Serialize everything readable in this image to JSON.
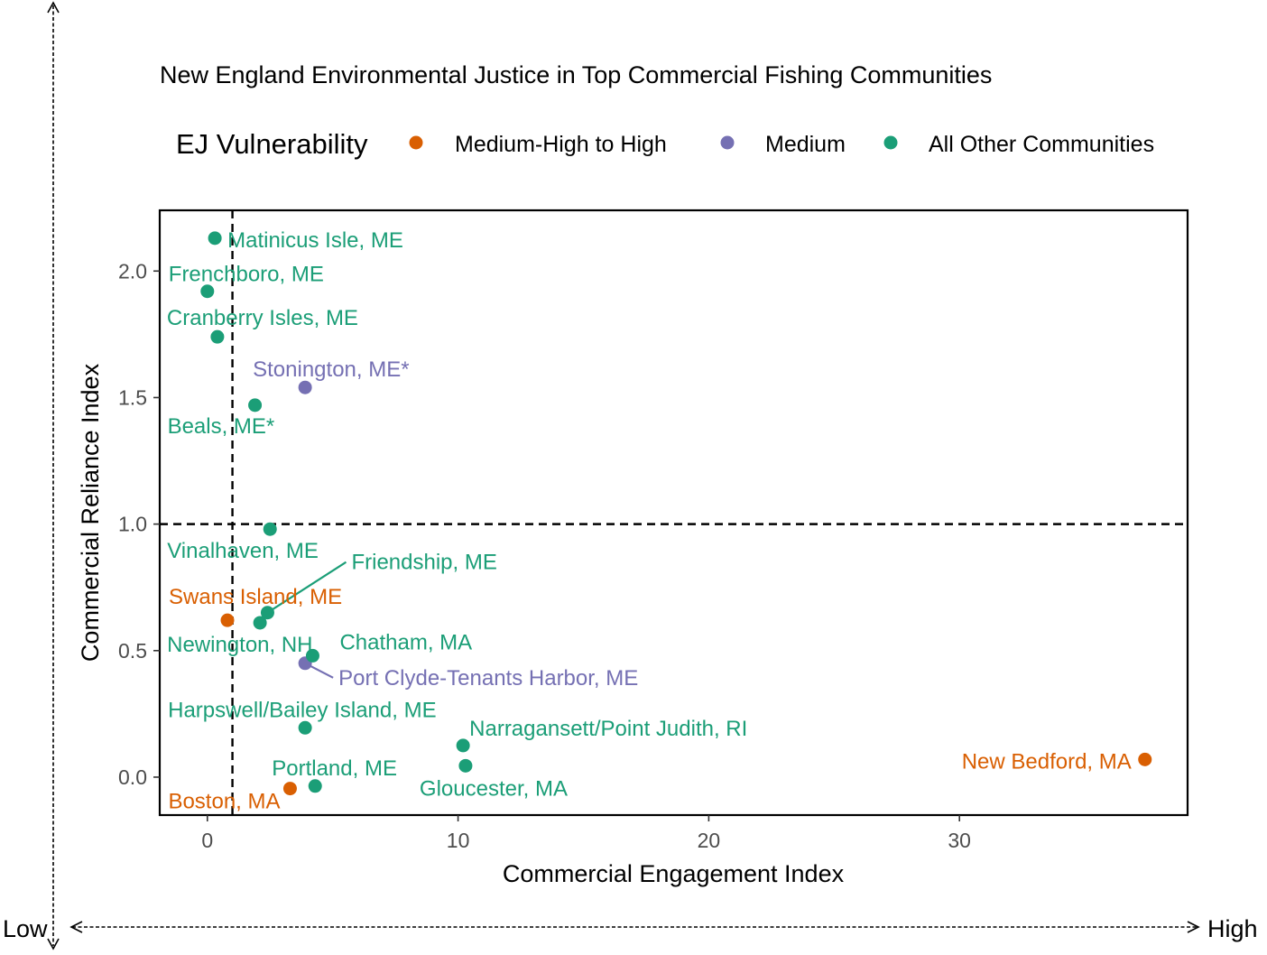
{
  "chart_data": {
    "type": "scatter",
    "title": "New England Environmental Justice in Top Commercial Fishing Communities",
    "xlabel": "Commercial Engagement Index",
    "ylabel": "Commercial Reliance Index",
    "xlim": [
      -1.9,
      39.1
    ],
    "ylim": [
      -0.15,
      2.24
    ],
    "xticks": [
      0,
      10,
      20,
      30
    ],
    "yticks": [
      0.0,
      0.5,
      1.0,
      1.5,
      2.0
    ],
    "xtick_labels": [
      "0",
      "10",
      "20",
      "30"
    ],
    "ytick_labels": [
      "0.0",
      "0.5",
      "1.0",
      "1.5",
      "2.0"
    ],
    "reference_lines": {
      "vertical_x": 1.0,
      "horizontal_y": 1.0,
      "style": "dashed"
    },
    "grid": false,
    "legend": {
      "title": "EJ Vulnerability",
      "placement": "top",
      "entries": [
        {
          "label": "Medium-High to High",
          "color": "#d95f02"
        },
        {
          "label": "Medium",
          "color": "#7570b3"
        },
        {
          "label": "All Other Communities",
          "color": "#1b9e77"
        }
      ]
    },
    "series": [
      {
        "name": "Medium-High to High",
        "color": "#d95f02",
        "points": [
          {
            "label": "Swans Island, ME",
            "x": 0.8,
            "y": 0.62
          },
          {
            "label": "Boston, MA",
            "x": 3.3,
            "y": -0.045
          },
          {
            "label": "New Bedford, MA",
            "x": 37.4,
            "y": 0.07
          }
        ]
      },
      {
        "name": "Medium",
        "color": "#7570b3",
        "points": [
          {
            "label": "Stonington, ME*",
            "x": 3.9,
            "y": 1.54
          },
          {
            "label": "Port Clyde-Tenants Harbor, ME",
            "x": 3.9,
            "y": 0.45
          }
        ]
      },
      {
        "name": "All Other Communities",
        "color": "#1b9e77",
        "points": [
          {
            "label": "Matinicus Isle, ME",
            "x": 0.3,
            "y": 2.13
          },
          {
            "label": "Frenchboro, ME",
            "x": 0.0,
            "y": 1.92
          },
          {
            "label": "Cranberry Isles, ME",
            "x": 0.4,
            "y": 1.74
          },
          {
            "label": "Beals, ME*",
            "x": 1.9,
            "y": 1.47
          },
          {
            "label": "Vinalhaven, ME",
            "x": 2.5,
            "y": 0.98
          },
          {
            "label": "Friendship, ME",
            "x": 2.4,
            "y": 0.65
          },
          {
            "label": "Newington, NH",
            "x": 2.1,
            "y": 0.61
          },
          {
            "label": "Chatham, MA",
            "x": 4.2,
            "y": 0.48
          },
          {
            "label": "Harpswell/Bailey Island, ME",
            "x": 3.9,
            "y": 0.195
          },
          {
            "label": "Narragansett/Point Judith, RI",
            "x": 10.2,
            "y": 0.125
          },
          {
            "label": "Gloucester, MA",
            "x": 10.3,
            "y": 0.045
          },
          {
            "label": "Portland, ME",
            "x": 4.3,
            "y": -0.035
          }
        ]
      }
    ]
  },
  "outer_axes": {
    "low_label": "Low",
    "high_label": "High"
  }
}
